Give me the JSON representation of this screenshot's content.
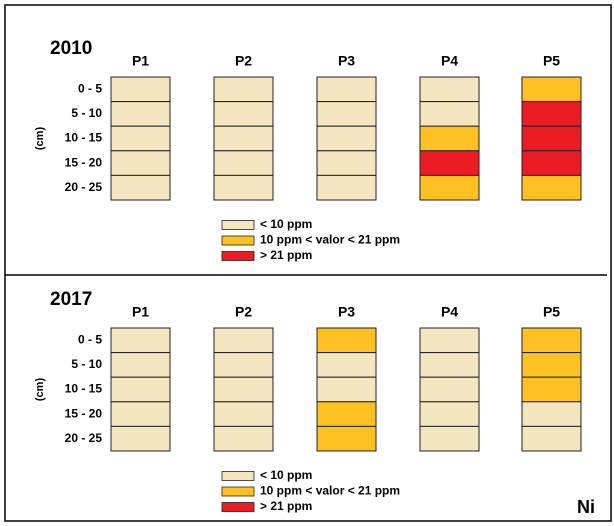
{
  "depth_unit": "(cm)",
  "depths": [
    "0 - 5",
    "5 - 10",
    "10 - 15",
    "15 - 20",
    "20 - 25"
  ],
  "legend": [
    {
      "label": "< 10 ppm",
      "color": "#f3e6c0"
    },
    {
      "label": "10 ppm < valor < 21 ppm",
      "color": "#fdc222"
    },
    {
      "label": "> 21 ppm",
      "color": "#ec1c24"
    }
  ],
  "element": "Ni",
  "panels": [
    {
      "year": "2010",
      "profiles": [
        {
          "name": "P1",
          "cells": [
            0,
            0,
            0,
            0,
            0
          ]
        },
        {
          "name": "P2",
          "cells": [
            0,
            0,
            0,
            0,
            0
          ]
        },
        {
          "name": "P3",
          "cells": [
            0,
            0,
            0,
            0,
            0
          ]
        },
        {
          "name": "P4",
          "cells": [
            0,
            0,
            1,
            2,
            1
          ]
        },
        {
          "name": "P5",
          "cells": [
            1,
            2,
            2,
            2,
            1
          ]
        }
      ]
    },
    {
      "year": "2017",
      "profiles": [
        {
          "name": "P1",
          "cells": [
            0,
            0,
            0,
            0,
            0
          ]
        },
        {
          "name": "P2",
          "cells": [
            0,
            0,
            0,
            0,
            0
          ]
        },
        {
          "name": "P3",
          "cells": [
            1,
            0,
            0,
            1,
            1
          ]
        },
        {
          "name": "P4",
          "cells": [
            0,
            0,
            0,
            0,
            0
          ]
        },
        {
          "name": "P5",
          "cells": [
            1,
            1,
            1,
            0,
            0
          ]
        }
      ]
    }
  ]
}
